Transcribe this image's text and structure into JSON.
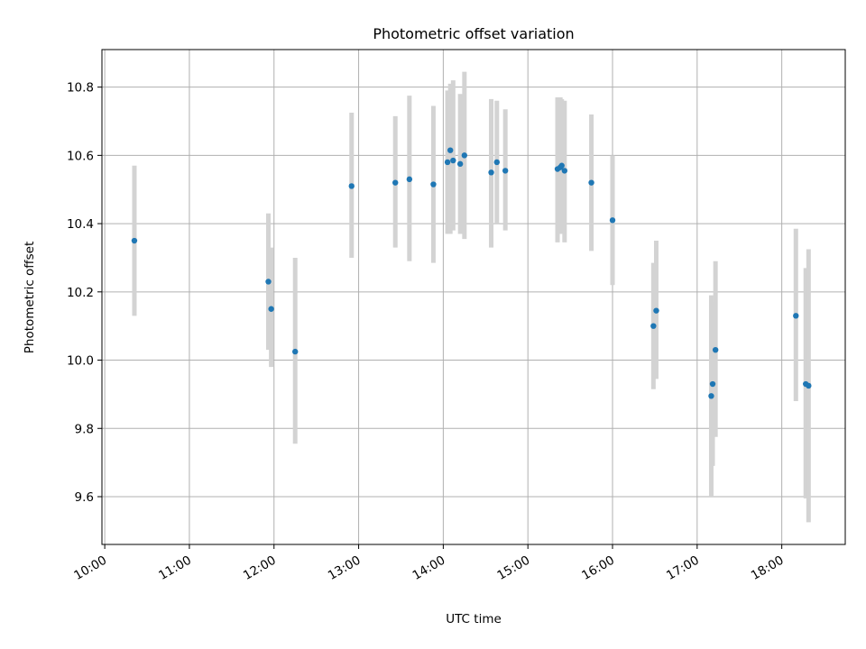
{
  "chart_data": {
    "type": "scatter",
    "title": "Photometric offset variation",
    "xlabel": "UTC time",
    "ylabel": "Photometric offset",
    "xlim": [
      "09:58",
      "18:45"
    ],
    "ylim": [
      9.46,
      10.91
    ],
    "x_ticks": [
      "10:00",
      "11:00",
      "12:00",
      "13:00",
      "14:00",
      "15:00",
      "16:00",
      "17:00",
      "18:00"
    ],
    "y_ticks": [
      9.6,
      9.8,
      10.0,
      10.2,
      10.4,
      10.6,
      10.8
    ],
    "grid": true,
    "colors": {
      "point": "#1f77b4",
      "errorbar": "#d3d3d3",
      "grid": "#b0b0b0"
    },
    "series": [
      {
        "points": [
          {
            "x": "10:21",
            "y": 10.35,
            "ylow": 10.13,
            "yhigh": 10.57
          },
          {
            "x": "11:56",
            "y": 10.23,
            "ylow": 10.03,
            "yhigh": 10.43
          },
          {
            "x": "11:58",
            "y": 10.15,
            "ylow": 9.98,
            "yhigh": 10.33
          },
          {
            "x": "12:15",
            "y": 10.025,
            "ylow": 9.755,
            "yhigh": 10.3
          },
          {
            "x": "12:55",
            "y": 10.51,
            "ylow": 10.3,
            "yhigh": 10.725
          },
          {
            "x": "13:26",
            "y": 10.52,
            "ylow": 10.33,
            "yhigh": 10.715
          },
          {
            "x": "13:36",
            "y": 10.53,
            "ylow": 10.29,
            "yhigh": 10.775
          },
          {
            "x": "13:53",
            "y": 10.515,
            "ylow": 10.285,
            "yhigh": 10.745
          },
          {
            "x": "14:03",
            "y": 10.58,
            "ylow": 10.37,
            "yhigh": 10.79
          },
          {
            "x": "14:05",
            "y": 10.615,
            "ylow": 10.37,
            "yhigh": 10.81
          },
          {
            "x": "14:07",
            "y": 10.585,
            "ylow": 10.38,
            "yhigh": 10.82
          },
          {
            "x": "14:12",
            "y": 10.575,
            "ylow": 10.37,
            "yhigh": 10.78
          },
          {
            "x": "14:15",
            "y": 10.6,
            "ylow": 10.355,
            "yhigh": 10.845
          },
          {
            "x": "14:34",
            "y": 10.55,
            "ylow": 10.33,
            "yhigh": 10.765
          },
          {
            "x": "14:38",
            "y": 10.58,
            "ylow": 10.4,
            "yhigh": 10.76
          },
          {
            "x": "14:44",
            "y": 10.555,
            "ylow": 10.38,
            "yhigh": 10.735
          },
          {
            "x": "15:21",
            "y": 10.56,
            "ylow": 10.345,
            "yhigh": 10.77
          },
          {
            "x": "15:23",
            "y": 10.565,
            "ylow": 10.37,
            "yhigh": 10.77
          },
          {
            "x": "15:24",
            "y": 10.57,
            "ylow": 10.37,
            "yhigh": 10.765
          },
          {
            "x": "15:26",
            "y": 10.555,
            "ylow": 10.345,
            "yhigh": 10.76
          },
          {
            "x": "15:45",
            "y": 10.52,
            "ylow": 10.32,
            "yhigh": 10.72
          },
          {
            "x": "16:00",
            "y": 10.41,
            "ylow": 10.22,
            "yhigh": 10.6
          },
          {
            "x": "16:29",
            "y": 10.1,
            "ylow": 9.915,
            "yhigh": 10.285
          },
          {
            "x": "16:31",
            "y": 10.145,
            "ylow": 9.945,
            "yhigh": 10.35
          },
          {
            "x": "17:10",
            "y": 9.895,
            "ylow": 9.6,
            "yhigh": 10.19
          },
          {
            "x": "17:11",
            "y": 9.93,
            "ylow": 9.69,
            "yhigh": 10.17
          },
          {
            "x": "17:13",
            "y": 10.03,
            "ylow": 9.775,
            "yhigh": 10.29
          },
          {
            "x": "18:10",
            "y": 10.13,
            "ylow": 9.88,
            "yhigh": 10.385
          },
          {
            "x": "18:17",
            "y": 9.93,
            "ylow": 9.595,
            "yhigh": 10.27
          },
          {
            "x": "18:19",
            "y": 9.925,
            "ylow": 9.525,
            "yhigh": 10.325
          }
        ]
      }
    ]
  }
}
